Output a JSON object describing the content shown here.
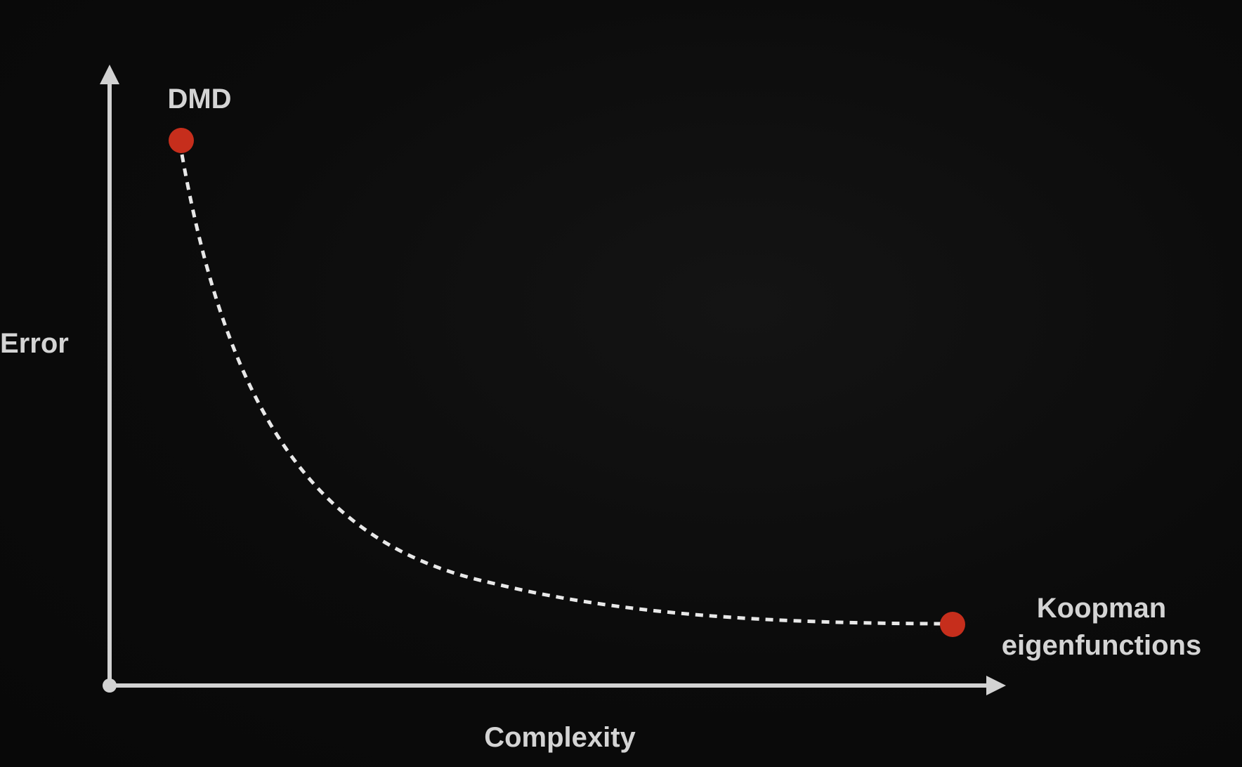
{
  "labels": {
    "y_axis": "Error",
    "x_axis": "Complexity",
    "start_point": "DMD",
    "end_point_line1": "Koopman",
    "end_point_line2": "eigenfunctions"
  },
  "colors": {
    "background": "#0a0a0a",
    "axis": "#d2d2d2",
    "curve": "#e8e8e8",
    "point": "#c62e1c",
    "text": "#d4d4d4"
  }
}
